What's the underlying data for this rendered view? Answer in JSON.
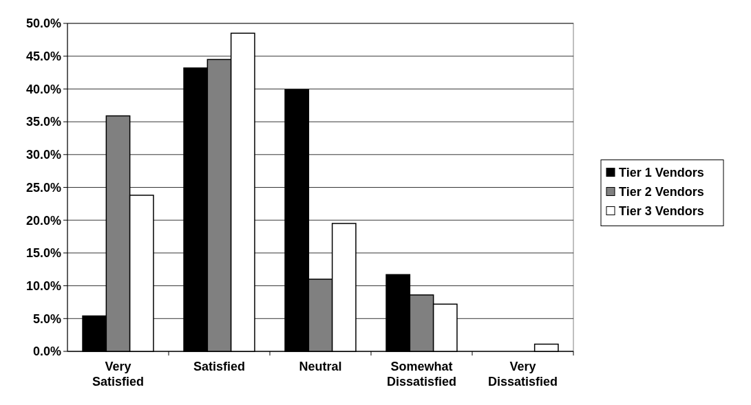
{
  "chart_data": {
    "type": "bar",
    "categories": [
      "Very Satisfied",
      "Satisfied",
      "Neutral",
      "Somewhat Dissatisfied",
      "Very Dissatisfied"
    ],
    "series": [
      {
        "name": "Tier 1 Vendors",
        "color": "#000000",
        "values": [
          5.4,
          43.2,
          39.9,
          11.7,
          0
        ]
      },
      {
        "name": "Tier 2 Vendors",
        "color": "#808080",
        "values": [
          35.9,
          44.5,
          11.0,
          8.6,
          0
        ]
      },
      {
        "name": "Tier 3 Vendors",
        "color": "#ffffff",
        "values": [
          23.8,
          48.5,
          19.5,
          7.2,
          1.1
        ]
      }
    ],
    "ylim": [
      0,
      50
    ],
    "yticks": [
      {
        "value": 0,
        "label": "0.0%"
      },
      {
        "value": 5,
        "label": "5.0%"
      },
      {
        "value": 10,
        "label": "10.0%"
      },
      {
        "value": 15,
        "label": "15.0%"
      },
      {
        "value": 20,
        "label": "20.0%"
      },
      {
        "value": 25,
        "label": "25.0%"
      },
      {
        "value": 30,
        "label": "30.0%"
      },
      {
        "value": 35,
        "label": "35.0%"
      },
      {
        "value": 40,
        "label": "40.0%"
      },
      {
        "value": 45,
        "label": "45.0%"
      },
      {
        "value": 50,
        "label": "50.0%"
      }
    ],
    "grid": "y",
    "legend": "right"
  }
}
